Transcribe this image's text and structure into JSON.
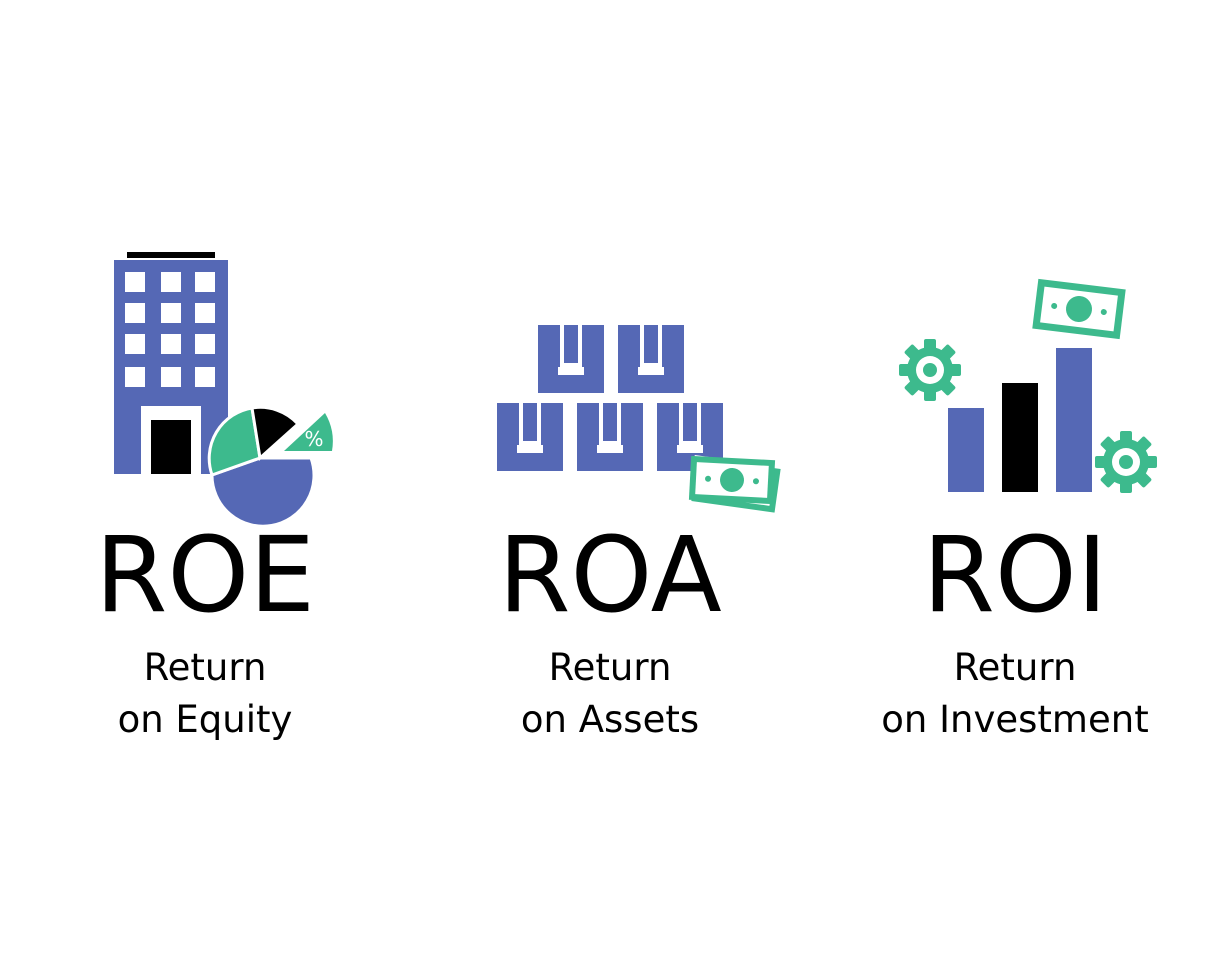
{
  "colors": {
    "primary": "#5568b5",
    "accent": "#3dba8d",
    "dark": "#000000",
    "background": "#ffffff"
  },
  "cards": [
    {
      "acronym": "ROE",
      "line1": "Return",
      "line2": "on Equity",
      "icon": "building-pie-chart-icon",
      "badge": "%"
    },
    {
      "acronym": "ROA",
      "line1": "Return",
      "line2": "on Assets",
      "icon": "stacked-boxes-money-icon"
    },
    {
      "acronym": "ROI",
      "line1": "Return",
      "line2": "on Investment",
      "icon": "bar-chart-gears-money-icon"
    }
  ]
}
